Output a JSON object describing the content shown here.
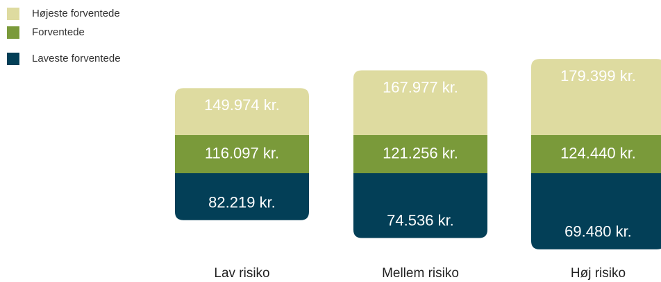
{
  "chart_data": {
    "type": "range-bar",
    "categories": [
      "Lav risiko",
      "Mellem risiko",
      "Høj risiko"
    ],
    "series": [
      {
        "name": "Højeste forventede",
        "color": "#dedba0",
        "values": [
          149974,
          167977,
          179399
        ],
        "value_labels": [
          "149.974 kr.",
          "167.977 kr.",
          "179.399 kr."
        ]
      },
      {
        "name": "Forventede",
        "color": "#7a9a3a",
        "values": [
          116097,
          121256,
          124440
        ],
        "value_labels": [
          "116.097 kr.",
          "121.256 kr.",
          "124.440 kr."
        ]
      },
      {
        "name": "Laveste forventede",
        "color": "#033f57",
        "values": [
          82219,
          74536,
          69480
        ],
        "value_labels": [
          "82.219 kr.",
          "74.536 kr.",
          "69.480 kr."
        ]
      }
    ]
  }
}
